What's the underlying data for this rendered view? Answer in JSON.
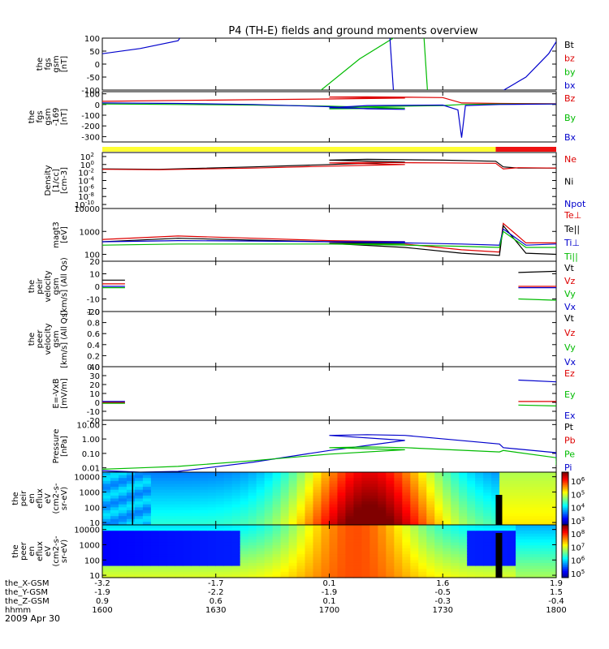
{
  "title": "P4 (TH-E) fields and ground moments overview",
  "date_label": "2009 Apr 30",
  "chart_data": [
    {
      "id": "fgs",
      "type": "line",
      "ylabel": [
        "the",
        "fgs",
        "gsm",
        "[nT]"
      ],
      "ylim": [
        -100,
        100
      ],
      "yticks": [
        100,
        50,
        0,
        -50,
        -100
      ],
      "legend": [
        "Bt",
        "bz",
        "by",
        "bx"
      ],
      "legend_colors": [
        "#000000",
        "#dd0000",
        "#00bb00",
        "#0000cc"
      ],
      "series": [
        {
          "color": "#0000cc",
          "x": [
            1600,
            1610,
            1620,
            1621
          ],
          "y": [
            40,
            60,
            90,
            110
          ]
        },
        {
          "color": "#00bb00",
          "x": [
            1657,
            1668,
            1678
          ],
          "y": [
            -110,
            20,
            110
          ]
        },
        {
          "color": "#0000cc",
          "x": [
            1716,
            1717
          ],
          "y": [
            110,
            -110
          ]
        },
        {
          "color": "#00bb00",
          "x": [
            1725,
            1726
          ],
          "y": [
            110,
            -110
          ]
        },
        {
          "color": "#0000cc",
          "x": [
            1745,
            1752,
            1758,
            1761
          ],
          "y": [
            -110,
            -50,
            40,
            110
          ]
        }
      ]
    },
    {
      "id": "fgs_mean",
      "type": "line",
      "ylabel": [
        "the",
        "fgs",
        "gsm",
        "-169",
        "[nT]"
      ],
      "ylim": [
        -350,
        120
      ],
      "yticks": [
        100,
        0,
        -100,
        -200,
        -300
      ],
      "legend": [
        "Bz",
        "By",
        "Bx"
      ],
      "legend_colors": [
        "#dd0000",
        "#00bb00",
        "#0000cc"
      ],
      "series": [
        {
          "color": "#dd0000",
          "x": [
            1600,
            1620,
            1640,
            1660,
            1680,
            1700,
            1710,
            1730,
            1735,
            1745,
            1760,
            1800
          ],
          "y": [
            30,
            38,
            45,
            52,
            60,
            70,
            72,
            65,
            15,
            10,
            8,
            10
          ]
        },
        {
          "color": "#00bb00",
          "x": [
            1600,
            1620,
            1640,
            1660,
            1680,
            1700,
            1710,
            1730,
            1735,
            1745,
            1760,
            1800
          ],
          "y": [
            5,
            0,
            -5,
            -15,
            -35,
            -40,
            -20,
            -10,
            0,
            5,
            5,
            5
          ]
        },
        {
          "color": "#0000cc",
          "x": [
            1600,
            1620,
            1640,
            1660,
            1670,
            1680,
            1700,
            1710,
            1730,
            1734,
            1735,
            1736,
            1745,
            1760,
            1800
          ],
          "y": [
            15,
            10,
            0,
            -20,
            -40,
            -45,
            -30,
            -10,
            -5,
            -50,
            -310,
            -10,
            0,
            5,
            5
          ]
        }
      ]
    },
    {
      "id": "density",
      "type": "line",
      "log": true,
      "ylabel": [
        "Density",
        "[1/cc]",
        "[cm-3]"
      ],
      "ylim": [
        -11,
        3
      ],
      "ytick_labels": [
        {
          "e": 2,
          "t": "10"
        },
        {
          "e": 0,
          "t": "10"
        },
        {
          "e": -2,
          "t": "10"
        },
        {
          "e": -4,
          "t": "10"
        },
        {
          "e": -6,
          "t": "10"
        },
        {
          "e": -8,
          "t": "10"
        },
        {
          "e": -10,
          "t": "10"
        }
      ],
      "legend": [
        "Ne",
        "Ni",
        "Npot"
      ],
      "legend_colors": [
        "#dd0000",
        "#000000",
        "#0000cc"
      ],
      "series": [
        {
          "color": "#000000",
          "x": [
            1600,
            1615,
            1640,
            1660,
            1680,
            1700,
            1710,
            1730,
            1744,
            1746,
            1750,
            1800
          ],
          "y": [
            -1.1,
            -1.2,
            -0.6,
            0,
            0.6,
            1.1,
            1.3,
            1.1,
            0.8,
            -0.6,
            -0.9,
            -0.9
          ]
        },
        {
          "color": "#dd0000",
          "x": [
            1600,
            1615,
            1640,
            1660,
            1680,
            1700,
            1710,
            1730,
            1744,
            1746,
            1750,
            1800
          ],
          "y": [
            -1.2,
            -1.3,
            -0.9,
            -0.4,
            0,
            0.4,
            0.5,
            0.4,
            0.3,
            -1.1,
            -0.8,
            -0.9
          ]
        }
      ]
    },
    {
      "id": "temp",
      "type": "line",
      "log": true,
      "ylabel": [
        "magt3",
        "[eV]"
      ],
      "ylim": [
        1.7,
        4
      ],
      "yticks": [
        10000,
        1000,
        100
      ],
      "legend": [
        "Te⊥",
        "Te||",
        "Ti⊥",
        "Ti||"
      ],
      "legend_colors": [
        "#dd0000",
        "#000000",
        "#0000cc",
        "#00bb00"
      ],
      "series": [
        {
          "color": "#dd0000",
          "x": [
            1600,
            1620,
            1640,
            1660,
            1680,
            1700,
            1720,
            1735,
            1745,
            1746,
            1752,
            1800
          ],
          "y": [
            2.65,
            2.8,
            2.7,
            2.6,
            2.55,
            2.55,
            2.45,
            2.2,
            2.1,
            3.35,
            2.5,
            2.5
          ]
        },
        {
          "color": "#000000",
          "x": [
            1600,
            1620,
            1640,
            1660,
            1680,
            1700,
            1720,
            1735,
            1745,
            1746,
            1752,
            1800
          ],
          "y": [
            2.55,
            2.7,
            2.62,
            2.55,
            2.5,
            2.48,
            2.3,
            2.05,
            1.95,
            3.25,
            2.05,
            2.0
          ]
        },
        {
          "color": "#0000cc",
          "x": [
            1600,
            1620,
            1640,
            1660,
            1680,
            1700,
            1720,
            1735,
            1745,
            1746,
            1752,
            1800
          ],
          "y": [
            2.55,
            2.6,
            2.58,
            2.55,
            2.55,
            2.55,
            2.5,
            2.45,
            2.4,
            3.1,
            2.4,
            2.45
          ]
        },
        {
          "color": "#00bb00",
          "x": [
            1600,
            1620,
            1640,
            1660,
            1680,
            1700,
            1720,
            1735,
            1745,
            1746,
            1752,
            1800
          ],
          "y": [
            2.4,
            2.45,
            2.45,
            2.45,
            2.45,
            2.45,
            2.4,
            2.35,
            2.3,
            3.0,
            2.3,
            2.3
          ]
        }
      ]
    },
    {
      "id": "peir_vel",
      "type": "line",
      "ylabel": [
        "the",
        "peir",
        "velocity",
        "gsm",
        "[km/s] (All Qs)"
      ],
      "ylim": [
        -20,
        20
      ],
      "yticks": [
        20,
        10,
        0,
        -10,
        -20
      ],
      "legend": [
        "Vt",
        "Vz",
        "Vy",
        "Vx"
      ],
      "legend_colors": [
        "#000000",
        "#dd0000",
        "#00bb00",
        "#0000cc"
      ],
      "series": [
        {
          "color": "#000000",
          "x": [
            1600,
            1606
          ],
          "y": [
            5,
            5
          ]
        },
        {
          "color": "#dd0000",
          "x": [
            1600,
            1606
          ],
          "y": [
            2,
            2
          ]
        },
        {
          "color": "#00bb00",
          "x": [
            1600,
            1606
          ],
          "y": [
            -1,
            -1
          ]
        },
        {
          "color": "#0000cc",
          "x": [
            1600,
            1606
          ],
          "y": [
            0,
            0
          ]
        },
        {
          "color": "#000000",
          "x": [
            1750,
            1800
          ],
          "y": [
            11,
            12
          ]
        },
        {
          "color": "#dd0000",
          "x": [
            1750,
            1800
          ],
          "y": [
            0,
            0
          ]
        },
        {
          "color": "#0000cc",
          "x": [
            1750,
            1800
          ],
          "y": [
            -1,
            -1
          ]
        },
        {
          "color": "#00bb00",
          "x": [
            1750,
            1800
          ],
          "y": [
            -10,
            -11
          ]
        }
      ]
    },
    {
      "id": "peer_vel",
      "type": "line",
      "ylabel": [
        "the",
        "peer",
        "velocity",
        "gsm",
        "[km/s] (All Qs)"
      ],
      "ylim": [
        0,
        1
      ],
      "yticks": [
        1.0,
        0.8,
        0.6,
        0.4,
        0.2,
        0.0
      ],
      "legend": [
        "Vt",
        "Vz",
        "Vy",
        "Vx"
      ],
      "legend_colors": [
        "#000000",
        "#dd0000",
        "#00bb00",
        "#0000cc"
      ],
      "series": []
    },
    {
      "id": "efield",
      "type": "line",
      "ylabel": [
        "E=-VxB",
        "[mV/m]"
      ],
      "ylim": [
        -20,
        40
      ],
      "yticks": [
        40,
        30,
        20,
        10,
        0,
        -10,
        -20
      ],
      "legend": [
        "Ez",
        "Ey",
        "Ex"
      ],
      "legend_colors": [
        "#dd0000",
        "#00bb00",
        "#0000cc"
      ],
      "series": [
        {
          "color": "#dd0000",
          "x": [
            1600,
            1606
          ],
          "y": [
            0,
            0
          ]
        },
        {
          "color": "#00bb00",
          "x": [
            1600,
            1606
          ],
          "y": [
            -1,
            -1
          ]
        },
        {
          "color": "#0000cc",
          "x": [
            1600,
            1606
          ],
          "y": [
            1,
            1
          ]
        },
        {
          "color": "#0000cc",
          "x": [
            1750,
            1800
          ],
          "y": [
            25,
            23
          ]
        },
        {
          "color": "#dd0000",
          "x": [
            1750,
            1800
          ],
          "y": [
            1,
            1
          ]
        },
        {
          "color": "#00bb00",
          "x": [
            1750,
            1800
          ],
          "y": [
            -3,
            -4
          ]
        }
      ]
    },
    {
      "id": "pressure",
      "type": "line",
      "log": true,
      "ylabel": [
        "Pressure",
        "[nPa]"
      ],
      "ylim": [
        -2.3,
        1.3
      ],
      "ytick_labels": [
        {
          "e": 1,
          "t": "10.00"
        },
        {
          "e": 0,
          "t": "1.00"
        },
        {
          "e": -1,
          "t": "0.10"
        },
        {
          "e": -2,
          "t": "0.01"
        }
      ],
      "legend": [
        "Pt",
        "Pb",
        "Pe",
        "Pi"
      ],
      "legend_colors": [
        "#000000",
        "#dd0000",
        "#00bb00",
        "#0000cc"
      ],
      "series": [
        {
          "color": "#0000cc",
          "x": [
            1600,
            1610,
            1620,
            1640,
            1660,
            1680,
            1700,
            1710,
            1720,
            1745,
            1746,
            1760,
            1800
          ],
          "y": [
            -2.2,
            -2.3,
            -2.25,
            -1.6,
            -0.8,
            -0.1,
            0.25,
            0.3,
            0.25,
            -0.35,
            -0.6,
            -0.95,
            -1.5
          ]
        },
        {
          "color": "#00bb00",
          "x": [
            1600,
            1610,
            1620,
            1640,
            1660,
            1680,
            1700,
            1710,
            1720,
            1745,
            1746,
            1760,
            1800
          ],
          "y": [
            -2.1,
            -2.0,
            -1.9,
            -1.5,
            -1.05,
            -0.75,
            -0.6,
            -0.55,
            -0.6,
            -0.9,
            -0.8,
            -1.3,
            -1.8
          ]
        }
      ]
    },
    {
      "id": "peir_spec",
      "type": "heatmap",
      "ylabel": [
        "the",
        "peir",
        "en",
        "eflux",
        "eV",
        "(cm2-s-",
        "sr-eV)"
      ],
      "ylim": [
        7,
        20000
      ],
      "yticks": [
        10000,
        1000,
        100,
        10
      ],
      "colorbar_labels": [
        {
          "e": 6,
          "t": "10"
        },
        {
          "e": 5,
          "t": "10"
        },
        {
          "e": 4,
          "t": "10"
        },
        {
          "e": 3,
          "t": "10"
        }
      ]
    },
    {
      "id": "peer_spec",
      "type": "heatmap",
      "ylabel": [
        "the",
        "peer",
        "en",
        "eflux",
        "eV",
        "(cm2-s-",
        "sr-eV)"
      ],
      "ylim": [
        7,
        20000
      ],
      "yticks": [
        10000,
        1000,
        100,
        10
      ],
      "colorbar_labels": [
        {
          "e": 8,
          "t": "10"
        },
        {
          "e": 7,
          "t": "10"
        },
        {
          "e": 6,
          "t": "10"
        },
        {
          "e": 5,
          "t": "10"
        }
      ]
    }
  ],
  "x_axis": {
    "ticks": [
      1600,
      1630,
      1700,
      1730,
      1800
    ],
    "rows": [
      {
        "label": "the_X-GSM",
        "values": [
          "-3.2",
          "-1.7",
          "0.1",
          "1.6",
          "1.9"
        ]
      },
      {
        "label": "the_Y-GSM",
        "values": [
          "-1.9",
          "-2.2",
          "-1.9",
          "-0.5",
          "1.5"
        ]
      },
      {
        "label": "the_Z-GSM",
        "values": [
          "0.9",
          "0.6",
          "0.1",
          "-0.3",
          "-0.4"
        ]
      },
      {
        "label": "hhmm",
        "values": [
          "1600",
          "1630",
          "1700",
          "1730",
          "1800"
        ]
      }
    ]
  },
  "mode_bar": {
    "segments": [
      {
        "from": 1600,
        "to": 1744,
        "color": "#ffff33"
      },
      {
        "from": 1744,
        "to": 1800,
        "color": "#ee1111"
      }
    ]
  }
}
